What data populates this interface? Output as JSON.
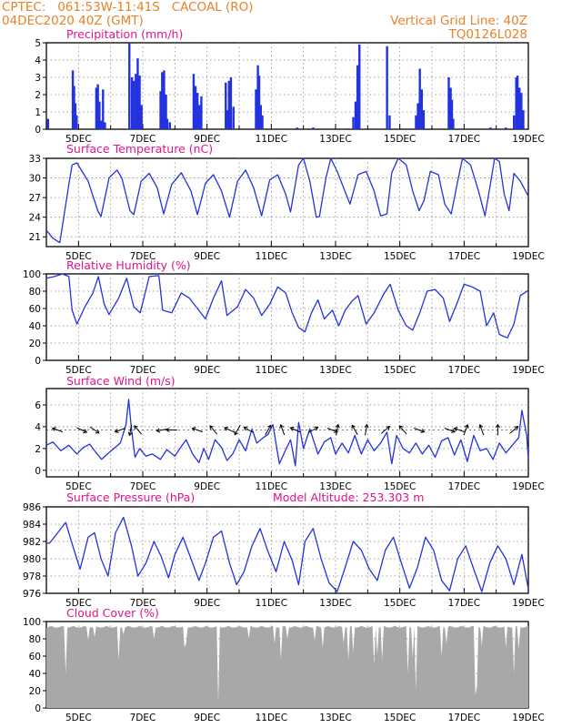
{
  "header": {
    "line1": "CPTEC:   061:53W-11:41S   CACOAL (RO)",
    "line2": "04DEC2020 40Z (GMT)",
    "right1": "Vertical Grid Line: 40Z",
    "right2": "TQ0126L028"
  },
  "colors": {
    "header": "#e8822a",
    "title": "#e0148c",
    "line": "#2233dd",
    "bar": "#2233dd",
    "cloud": "#a8a8a8",
    "arrow": "#000000"
  },
  "x_tick_labels": [
    "5DEC",
    "7DEC",
    "9DEC",
    "11DEC",
    "13DEC",
    "15DEC",
    "17DEC",
    "19DEC"
  ],
  "chart_data": [
    {
      "id": "precip",
      "type": "bar",
      "title": "Precipitation (mm/h)",
      "x_range_days": [
        4.0,
        19.0
      ],
      "ylim": [
        0,
        5
      ],
      "yticks": [
        0,
        1,
        2,
        3,
        4,
        5
      ],
      "grid": true,
      "events": [
        [
          4.05,
          0.6
        ],
        [
          4.82,
          3.4
        ],
        [
          4.86,
          2.5
        ],
        [
          4.9,
          1.5
        ],
        [
          4.94,
          0.8
        ],
        [
          5.55,
          2.4
        ],
        [
          5.6,
          2.6
        ],
        [
          5.65,
          1.6
        ],
        [
          5.7,
          0.5
        ],
        [
          5.76,
          2.3
        ],
        [
          5.82,
          0.4
        ],
        [
          6.58,
          5.0
        ],
        [
          6.66,
          3.0
        ],
        [
          6.72,
          2.8
        ],
        [
          6.78,
          3.2
        ],
        [
          6.84,
          4.1
        ],
        [
          6.9,
          3.1
        ],
        [
          6.96,
          1.4
        ],
        [
          7.55,
          2.2
        ],
        [
          7.6,
          3.3
        ],
        [
          7.66,
          3.4
        ],
        [
          7.72,
          2.0
        ],
        [
          7.76,
          0.6
        ],
        [
          7.84,
          0.4
        ],
        [
          8.58,
          3.2
        ],
        [
          8.64,
          2.5
        ],
        [
          8.7,
          2.1
        ],
        [
          8.76,
          1.4
        ],
        [
          8.82,
          1.9
        ],
        [
          9.58,
          2.7
        ],
        [
          9.63,
          1.1
        ],
        [
          9.68,
          2.8
        ],
        [
          9.74,
          3.0
        ],
        [
          9.82,
          1.3
        ],
        [
          10.52,
          2.3
        ],
        [
          10.58,
          3.7
        ],
        [
          10.62,
          3.1
        ],
        [
          10.67,
          1.4
        ],
        [
          10.72,
          0.8
        ],
        [
          11.8,
          0.1
        ],
        [
          12.3,
          0.1
        ],
        [
          13.4,
          0.05
        ],
        [
          13.55,
          0.7
        ],
        [
          13.62,
          1.6
        ],
        [
          13.68,
          3.7
        ],
        [
          13.74,
          4.9
        ],
        [
          14.6,
          4.8
        ],
        [
          14.68,
          0.8
        ],
        [
          15.5,
          0.8
        ],
        [
          15.56,
          1.5
        ],
        [
          15.62,
          3.5
        ],
        [
          15.68,
          2.3
        ],
        [
          15.74,
          1.1
        ],
        [
          16.52,
          3.0
        ],
        [
          16.58,
          2.4
        ],
        [
          16.62,
          1.7
        ],
        [
          16.66,
          0.6
        ],
        [
          17.82,
          0.1
        ],
        [
          18.3,
          0.1
        ],
        [
          18.55,
          0.8
        ],
        [
          18.62,
          3.0
        ],
        [
          18.66,
          3.1
        ],
        [
          18.72,
          2.4
        ],
        [
          18.78,
          2.1
        ],
        [
          18.84,
          1.1
        ]
      ]
    },
    {
      "id": "temp",
      "type": "line",
      "title": "Surface Temperature (nC)",
      "x_range_days": [
        4.0,
        19.0
      ],
      "ylim": [
        19.5,
        33
      ],
      "yticks": [
        21,
        24,
        27,
        30,
        33
      ],
      "grid": true,
      "x": [
        4.0,
        4.2,
        4.42,
        4.7,
        4.8,
        4.95,
        5.3,
        5.6,
        5.7,
        5.95,
        6.2,
        6.35,
        6.6,
        6.72,
        6.95,
        7.2,
        7.45,
        7.65,
        7.9,
        8.2,
        8.5,
        8.7,
        8.95,
        9.2,
        9.45,
        9.7,
        9.95,
        10.2,
        10.45,
        10.7,
        10.95,
        11.2,
        11.45,
        11.6,
        11.85,
        12.0,
        12.2,
        12.4,
        12.5,
        12.7,
        12.85,
        13.05,
        13.25,
        13.45,
        13.7,
        13.95,
        14.2,
        14.4,
        14.6,
        14.75,
        14.95,
        15.2,
        15.4,
        15.6,
        15.75,
        15.95,
        16.2,
        16.4,
        16.6,
        16.8,
        16.95,
        17.2,
        17.45,
        17.65,
        17.8,
        17.95,
        18.1,
        18.25,
        18.4,
        18.55,
        18.75,
        19.0
      ],
      "y": [
        22.0,
        20.8,
        20.1,
        29.0,
        32.0,
        32.3,
        29.5,
        25.0,
        24.1,
        30.0,
        31.2,
        30.0,
        25.0,
        24.4,
        29.5,
        30.7,
        28.5,
        24.5,
        29.0,
        30.8,
        28.0,
        24.4,
        29.2,
        30.5,
        28.0,
        24.0,
        29.5,
        31.2,
        28.5,
        24.2,
        29.7,
        30.5,
        27.5,
        24.8,
        32.0,
        33.0,
        29.5,
        24.0,
        24.1,
        30.0,
        33.0,
        31.0,
        28.5,
        26.0,
        30.5,
        31.0,
        28.0,
        24.2,
        24.5,
        30.8,
        33.0,
        32.0,
        28.0,
        25.0,
        26.5,
        31.0,
        30.5,
        26.0,
        24.5,
        29.5,
        33.0,
        32.0,
        28.0,
        24.2,
        28.5,
        33.0,
        32.5,
        27.5,
        25.0,
        30.7,
        29.5,
        27.2
      ]
    },
    {
      "id": "rh",
      "type": "line",
      "title": "Relative Humidity (%)",
      "x_range_days": [
        4.0,
        19.0
      ],
      "ylim": [
        0,
        100
      ],
      "yticks": [
        0,
        20,
        40,
        60,
        80,
        100
      ],
      "grid": true,
      "x": [
        4.0,
        4.25,
        4.5,
        4.7,
        4.8,
        4.95,
        5.2,
        5.45,
        5.62,
        5.8,
        5.95,
        6.25,
        6.5,
        6.72,
        6.92,
        7.2,
        7.5,
        7.62,
        7.9,
        8.2,
        8.45,
        8.7,
        8.95,
        9.2,
        9.45,
        9.62,
        9.95,
        10.2,
        10.45,
        10.7,
        10.95,
        11.2,
        11.45,
        11.65,
        11.85,
        12.05,
        12.25,
        12.45,
        12.65,
        12.9,
        13.1,
        13.3,
        13.5,
        13.7,
        13.95,
        14.2,
        14.5,
        14.7,
        14.95,
        15.2,
        15.4,
        15.62,
        15.85,
        16.1,
        16.35,
        16.55,
        16.8,
        17.0,
        17.25,
        17.5,
        17.7,
        17.92,
        18.1,
        18.35,
        18.55,
        18.75,
        19.0
      ],
      "y": [
        95,
        97,
        100,
        97,
        58,
        42,
        62,
        78,
        97,
        65,
        53,
        72,
        95,
        62,
        55,
        97,
        98,
        58,
        55,
        78,
        72,
        60,
        48,
        72,
        92,
        52,
        62,
        82,
        72,
        52,
        65,
        85,
        78,
        55,
        38,
        33,
        55,
        70,
        48,
        58,
        40,
        58,
        68,
        75,
        42,
        55,
        77,
        88,
        58,
        40,
        35,
        55,
        80,
        82,
        72,
        45,
        68,
        88,
        85,
        80,
        40,
        55,
        30,
        26,
        42,
        75,
        81
      ]
    },
    {
      "id": "wind",
      "type": "line",
      "title": "Surface Wind (m/s)",
      "x_range_days": [
        4.0,
        19.0
      ],
      "ylim": [
        -0.6,
        7.5
      ],
      "yticks": [
        0,
        2,
        4,
        6
      ],
      "grid": true,
      "x": [
        4.0,
        4.2,
        4.45,
        4.7,
        4.95,
        5.15,
        5.35,
        5.55,
        5.72,
        5.9,
        6.1,
        6.3,
        6.48,
        6.56,
        6.64,
        6.76,
        6.9,
        7.1,
        7.3,
        7.55,
        7.75,
        8.0,
        8.2,
        8.35,
        8.55,
        8.75,
        8.9,
        9.05,
        9.25,
        9.45,
        9.62,
        9.8,
        10.0,
        10.2,
        10.4,
        10.55,
        10.75,
        10.9,
        11.05,
        11.25,
        11.45,
        11.6,
        11.75,
        11.85,
        12.0,
        12.2,
        12.45,
        12.65,
        12.85,
        13.0,
        13.2,
        13.4,
        13.6,
        13.8,
        14.0,
        14.2,
        14.4,
        14.6,
        14.75,
        14.9,
        15.1,
        15.3,
        15.5,
        15.7,
        15.9,
        16.1,
        16.3,
        16.5,
        16.7,
        16.9,
        17.1,
        17.3,
        17.5,
        17.7,
        17.9,
        18.1,
        18.3,
        18.5,
        18.7,
        18.8,
        18.95,
        19.0
      ],
      "y": [
        2.3,
        2.6,
        1.8,
        2.3,
        1.5,
        2.1,
        2.4,
        1.6,
        1.0,
        1.5,
        2.0,
        2.5,
        4.2,
        6.5,
        4.0,
        1.2,
        2.0,
        1.3,
        1.5,
        1.0,
        1.9,
        1.3,
        2.2,
        2.8,
        1.5,
        0.7,
        2.0,
        1.0,
        2.8,
        2.1,
        0.9,
        1.5,
        2.8,
        1.8,
        3.8,
        2.5,
        3.0,
        3.3,
        4.2,
        0.6,
        1.9,
        2.8,
        0.4,
        4.4,
        2.0,
        3.8,
        1.5,
        2.6,
        3.0,
        1.5,
        2.5,
        1.6,
        3.2,
        1.5,
        2.8,
        1.8,
        2.5,
        3.5,
        0.6,
        3.2,
        2.0,
        1.6,
        2.5,
        1.5,
        2.3,
        1.2,
        2.7,
        3.0,
        1.4,
        2.8,
        0.8,
        3.2,
        1.8,
        2.0,
        1.0,
        2.5,
        1.6,
        2.3,
        3.0,
        5.5,
        3.2,
        1.0
      ]
    },
    {
      "id": "pressure",
      "type": "line",
      "title": "Surface Pressure (hPa)",
      "annotation": "Model Altitude: 253.303 m",
      "x_range_days": [
        4.0,
        19.0
      ],
      "ylim": [
        976,
        986
      ],
      "yticks": [
        976,
        978,
        980,
        982,
        984,
        986
      ],
      "grid": true,
      "x": [
        4.0,
        4.1,
        4.35,
        4.6,
        4.82,
        5.05,
        5.3,
        5.5,
        5.7,
        5.92,
        6.15,
        6.4,
        6.65,
        6.85,
        7.1,
        7.35,
        7.58,
        7.8,
        8.0,
        8.25,
        8.5,
        8.75,
        8.95,
        9.2,
        9.45,
        9.7,
        9.92,
        10.15,
        10.4,
        10.65,
        10.9,
        11.15,
        11.4,
        11.65,
        11.85,
        12.05,
        12.3,
        12.55,
        12.8,
        13.05,
        13.3,
        13.55,
        13.8,
        14.05,
        14.3,
        14.55,
        14.8,
        15.05,
        15.3,
        15.55,
        15.8,
        16.05,
        16.3,
        16.55,
        16.8,
        17.05,
        17.3,
        17.55,
        17.8,
        18.05,
        18.3,
        18.55,
        18.8,
        19.0
      ],
      "y": [
        981.8,
        981.8,
        983.0,
        984.2,
        981.5,
        978.8,
        982.5,
        983.0,
        980.0,
        978.0,
        983.0,
        984.8,
        981.5,
        978.0,
        979.5,
        982.0,
        980.2,
        977.8,
        980.5,
        982.5,
        980.0,
        977.5,
        979.5,
        982.5,
        983.2,
        979.5,
        977.0,
        978.5,
        981.5,
        983.5,
        980.8,
        978.5,
        982.0,
        979.8,
        977.0,
        982.0,
        983.5,
        980.0,
        977.2,
        976.2,
        979.0,
        982.0,
        981.0,
        978.8,
        977.5,
        981.0,
        982.5,
        979.5,
        976.6,
        979.0,
        982.5,
        981.0,
        977.5,
        976.3,
        980.0,
        981.5,
        978.8,
        976.2,
        979.5,
        981.5,
        980.0,
        977.0,
        980.5,
        976.5
      ]
    },
    {
      "id": "cloud",
      "type": "area",
      "title": "Cloud Cover (%)",
      "x_range_days": [
        4.0,
        19.0
      ],
      "ylim": [
        0,
        100
      ],
      "yticks": [
        0,
        20,
        40,
        60,
        80,
        100
      ],
      "grid": true,
      "baseline": 95,
      "dips": [
        [
          4.6,
          40
        ],
        [
          5.28,
          78
        ],
        [
          5.5,
          82
        ],
        [
          6.27,
          55
        ],
        [
          6.42,
          85
        ],
        [
          7.35,
          80
        ],
        [
          8.3,
          70
        ],
        [
          8.35,
          75
        ],
        [
          9.35,
          5
        ],
        [
          10.3,
          80
        ],
        [
          11.1,
          75
        ],
        [
          11.3,
          55
        ],
        [
          11.5,
          80
        ],
        [
          12.35,
          78
        ],
        [
          12.6,
          70
        ],
        [
          13.25,
          75
        ],
        [
          13.4,
          55
        ],
        [
          13.55,
          65
        ],
        [
          14.2,
          50
        ],
        [
          14.3,
          62
        ],
        [
          14.45,
          55
        ],
        [
          15.25,
          40
        ],
        [
          15.4,
          58
        ],
        [
          15.48,
          20
        ],
        [
          16.3,
          60
        ],
        [
          16.45,
          75
        ],
        [
          17.35,
          15
        ],
        [
          17.4,
          25
        ],
        [
          17.55,
          72
        ],
        [
          18.3,
          70
        ],
        [
          18.55,
          40
        ],
        [
          18.7,
          68
        ]
      ]
    }
  ]
}
